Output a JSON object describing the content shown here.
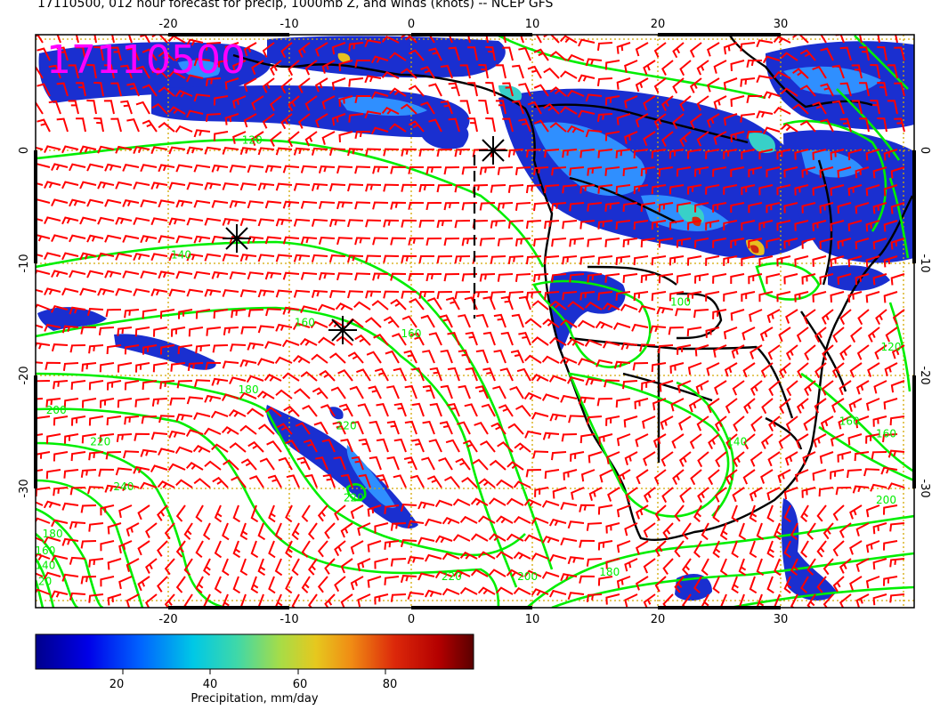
{
  "title": "17110500, 012 hour forecast for precip, 1000mb Z, and winds (knots) -- NCEP GFS",
  "stamp": "17110500",
  "lon_ticks": [
    "-20",
    "-10",
    "0",
    "10",
    "20",
    "30"
  ],
  "lat_ticks": [
    "0",
    "-10",
    "-20",
    "-30"
  ],
  "colorbar": {
    "label": "Precipitation, mm/day",
    "ticks": [
      "20",
      "40",
      "60",
      "80"
    ],
    "range": [
      0,
      100
    ]
  },
  "contour_labels": [
    {
      "text": "120",
      "lon": -13,
      "lat": 0.6
    },
    {
      "text": "140",
      "lon": -18.8,
      "lat": -9.6
    },
    {
      "text": "160",
      "lon": -8.7,
      "lat": -15.6
    },
    {
      "text": "160",
      "lon": 0,
      "lat": -16.6
    },
    {
      "text": "180",
      "lon": -13.3,
      "lat": -21.6
    },
    {
      "text": "200",
      "lon": -29,
      "lat": -23.4
    },
    {
      "text": "220",
      "lon": -25.4,
      "lat": -26.2
    },
    {
      "text": "220",
      "lon": -5.3,
      "lat": -24.8
    },
    {
      "text": "220",
      "lon": -4.7,
      "lat": -31.2
    },
    {
      "text": "240",
      "lon": -23.5,
      "lat": -30.2
    },
    {
      "text": "180",
      "lon": -29.3,
      "lat": -34.4
    },
    {
      "text": "160",
      "lon": -29.9,
      "lat": -35.9
    },
    {
      "text": "140",
      "lon": -29.9,
      "lat": -37.2
    },
    {
      "text": "120",
      "lon": -30.2,
      "lat": -38.6
    },
    {
      "text": "220",
      "lon": 3.3,
      "lat": -38.2
    },
    {
      "text": "200",
      "lon": 9.5,
      "lat": -38.2
    },
    {
      "text": "180",
      "lon": 16.2,
      "lat": -37.8
    },
    {
      "text": "140",
      "lon": 26.6,
      "lat": -26.2
    },
    {
      "text": "160",
      "lon": 35.8,
      "lat": -24.4
    },
    {
      "text": "160",
      "lon": 38.8,
      "lat": -25.5
    },
    {
      "text": "200",
      "lon": 38.8,
      "lat": -31.4
    },
    {
      "text": "100",
      "lon": 22,
      "lat": -13.8
    },
    {
      "text": "120",
      "lon": 39.2,
      "lat": -17.8
    }
  ],
  "colors": {
    "contour": "#00ee00",
    "barb": "#ff0000",
    "stamp": "#ff00ff",
    "grid": "#d4a800",
    "coast": "#000000"
  }
}
